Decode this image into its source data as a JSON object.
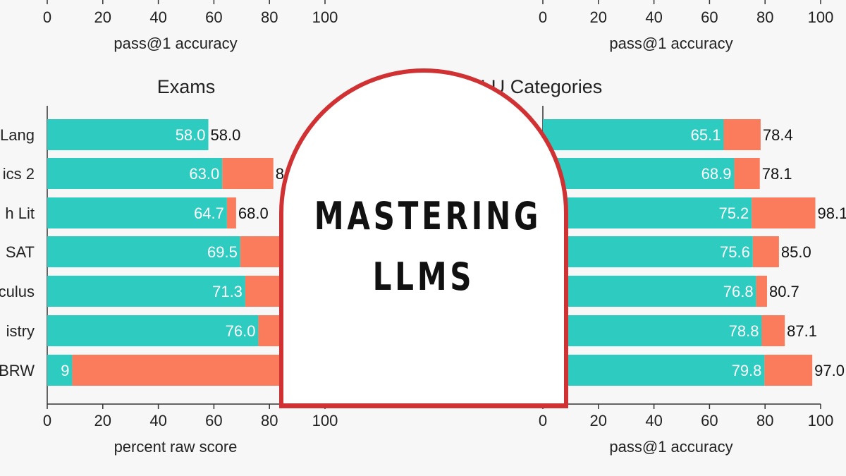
{
  "badge": {
    "line1": "MASTERING",
    "line2": "LLMS"
  },
  "colors": {
    "base": "#2ecbc1",
    "improvement": "#fb7c5c",
    "badge_border": "#d03234"
  },
  "chart_data": [
    {
      "type": "bar",
      "orientation": "horizontal",
      "stacked": true,
      "title": "",
      "xlabel": "pass@1 accuracy",
      "xlim": [
        0,
        100
      ],
      "xticks": [
        0,
        20,
        40,
        60,
        80,
        100
      ],
      "categories": [],
      "series": []
    },
    {
      "type": "bar",
      "orientation": "horizontal",
      "stacked": true,
      "title": "",
      "xlabel": "pass@1 accuracy",
      "xlim": [
        0,
        100
      ],
      "xticks": [
        0,
        20,
        40,
        60,
        80,
        100
      ],
      "categories": [],
      "series": []
    },
    {
      "type": "bar",
      "orientation": "horizontal",
      "stacked": true,
      "title": "Exams",
      "xlabel": "percent raw score",
      "xlim": [
        0,
        100
      ],
      "xticks": [
        0,
        20,
        40,
        60,
        80,
        100
      ],
      "categories": [
        "Lang",
        "ics 2",
        "h Lit",
        "SAT",
        "culus",
        "istry",
        "BRW"
      ],
      "base_values": [
        58.0,
        63.0,
        64.7,
        69.5,
        71.3,
        76.0,
        9
      ],
      "total_values": [
        58.0,
        81.4,
        68.0,
        85.0,
        86.0,
        90.0,
        97.0
      ],
      "base_labels": [
        "58.0",
        "63.0",
        "64.7",
        "69.5",
        "71.3",
        "76.0",
        "9"
      ],
      "total_labels": [
        "58.0",
        "8",
        "68.0",
        "",
        "",
        "",
        ""
      ]
    },
    {
      "type": "bar",
      "orientation": "horizontal",
      "stacked": true,
      "title": "MMLU Categories",
      "xlabel": "pass@1 accuracy",
      "xlim": [
        0,
        100
      ],
      "xticks": [
        0,
        20,
        40,
        60,
        80,
        100
      ],
      "categories": [],
      "base_values": [
        65.1,
        68.9,
        75.2,
        75.6,
        76.8,
        78.8,
        79.8
      ],
      "total_values": [
        78.4,
        78.1,
        98.1,
        85.0,
        80.7,
        87.1,
        97.0
      ],
      "base_labels": [
        "65.1",
        "68.9",
        "75.2",
        "75.6",
        "76.8",
        "78.8",
        "79.8"
      ],
      "total_labels": [
        "78.4",
        "78.1",
        "98.1",
        "85.0",
        "80.7",
        "87.1",
        "97.0"
      ]
    }
  ]
}
